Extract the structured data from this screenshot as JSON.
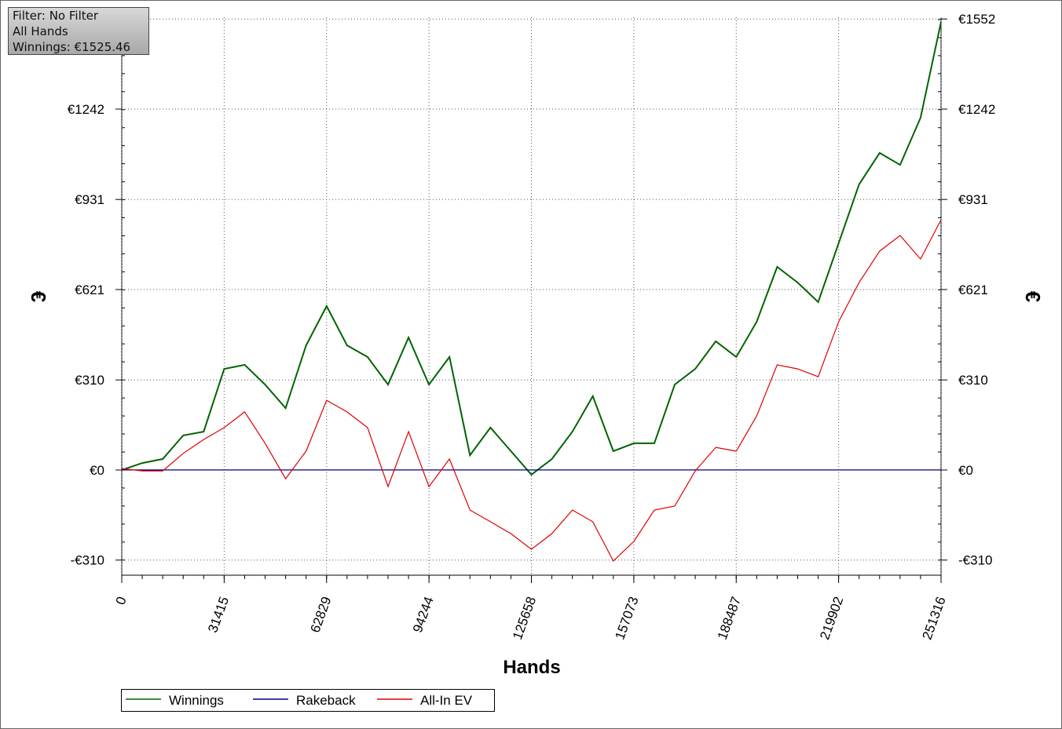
{
  "info": {
    "filter": "Filter: No Filter",
    "hands": "All Hands",
    "winnings": "Winnings: €1525.46"
  },
  "chart_data": {
    "type": "line",
    "xlabel": "Hands",
    "ylabel": "€",
    "y2label": "€",
    "x": [
      0,
      6283,
      12566,
      18849,
      25132,
      31415,
      37698,
      43981,
      50264,
      56547,
      62829,
      69112,
      75395,
      81678,
      87961,
      94244,
      100527,
      106810,
      113093,
      119376,
      125658,
      131941,
      138224,
      144507,
      150790,
      157073,
      163356,
      169639,
      175922,
      182205,
      188487,
      194770,
      201053,
      207336,
      213619,
      219902,
      226185,
      232468,
      238751,
      245034,
      251316
    ],
    "series": [
      {
        "name": "Winnings",
        "color": "#006400",
        "values": [
          0,
          24,
          38,
          119,
          132,
          348,
          362,
          294,
          213,
          429,
          564,
          429,
          389,
          294,
          456,
          294,
          389,
          51,
          146,
          65,
          -16,
          38,
          132,
          254,
          65,
          92,
          92,
          294,
          348,
          443,
          389,
          510,
          699,
          645,
          578,
          780,
          983,
          1091,
          1050,
          1212,
          1542
        ]
      },
      {
        "name": "Rakeback",
        "color": "#000080",
        "values": [
          0,
          0,
          0,
          0,
          0,
          0,
          0,
          0,
          0,
          0,
          0,
          0,
          0,
          0,
          0,
          0,
          0,
          0,
          0,
          0,
          0,
          0,
          0,
          0,
          0,
          0,
          0,
          0,
          0,
          0,
          0,
          0,
          0,
          0,
          0,
          0,
          0,
          0,
          0,
          0,
          0
        ]
      },
      {
        "name": "All-In EV",
        "color": "#e00000",
        "values": [
          5,
          -3,
          -3,
          57,
          105,
          146,
          200,
          92,
          -30,
          65,
          240,
          200,
          146,
          -57,
          132,
          -57,
          38,
          -138,
          -178,
          -219,
          -273,
          -219,
          -138,
          -178,
          -313,
          -246,
          -138,
          -124,
          -3,
          78,
          65,
          186,
          362,
          348,
          321,
          510,
          645,
          753,
          807,
          726,
          861
        ]
      }
    ],
    "xlim": [
      0,
      251316
    ],
    "xticks": [
      0,
      31415,
      62829,
      94244,
      125658,
      157073,
      188487,
      219902,
      251316
    ],
    "ylim": [
      -362,
      1558
    ],
    "yticks": [
      {
        "value": -310,
        "label": "-€310"
      },
      {
        "value": 0,
        "label": "€0"
      },
      {
        "value": 310,
        "label": "€310"
      },
      {
        "value": 621,
        "label": "€621"
      },
      {
        "value": 931,
        "label": "€931"
      },
      {
        "value": 1242,
        "label": "€1242"
      },
      {
        "value": 1552,
        "label": "€1552"
      }
    ],
    "grid": true
  }
}
